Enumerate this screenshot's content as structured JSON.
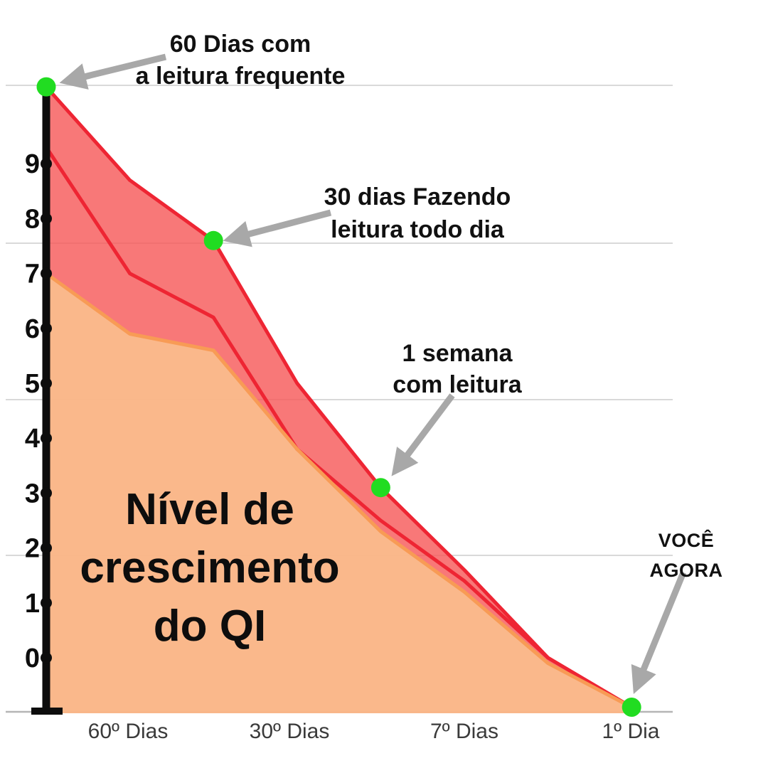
{
  "page": {
    "background": "#ffffff"
  },
  "title": {
    "lines": [
      "Nível de",
      "crescimento",
      "do QI"
    ]
  },
  "chart_data": {
    "type": "area",
    "inside_label": "Nível de crescimento do QI",
    "x_tick_labels": [
      "60º Dias",
      "30º Dias",
      "7º Dias",
      "1º Dia"
    ],
    "y_tick_labels": [
      "9",
      "8",
      "7",
      "6",
      "5",
      "4",
      "3",
      "2",
      "1",
      "0"
    ],
    "y_axis": {
      "ticks_min": 0,
      "ticks_max": 9
    },
    "series": [
      {
        "name": "crescimento-com-leitura-frequente",
        "type": "area",
        "stroke": "#ee2533",
        "fill": "#f65a5a",
        "fill_opacity": 0.82,
        "values": [
          10.4,
          8.7,
          7.6,
          5.0,
          3.1,
          1.6,
          0.0,
          -0.9
        ]
      },
      {
        "name": "crescimento-medio",
        "type": "line",
        "stroke": "#ee2533",
        "values": [
          9.3,
          7.0,
          6.2,
          3.8,
          2.5,
          1.4,
          0.0,
          -0.9
        ]
      },
      {
        "name": "crescimento-sem-leitura",
        "type": "area",
        "stroke": "#f89b55",
        "fill": "#fabf8d",
        "fill_opacity": 0.9,
        "values": [
          7.0,
          5.9,
          5.6,
          3.8,
          2.3,
          1.2,
          -0.1,
          -0.9
        ]
      }
    ],
    "markers": {
      "series_index": 0,
      "point_indices": [
        0,
        2,
        4,
        7
      ],
      "color": "#21dc21"
    },
    "annotations": [
      {
        "lines": [
          "60 Dias com",
          "a leitura frequente"
        ],
        "points_to": "marker-0"
      },
      {
        "lines": [
          "30 dias Fazendo",
          "leitura todo dia"
        ],
        "points_to": "marker-1"
      },
      {
        "lines": [
          "1 semana",
          "com leitura"
        ],
        "points_to": "marker-2"
      },
      {
        "lines": [
          "VOCÊ",
          "AGORA"
        ],
        "points_to": "marker-3"
      }
    ],
    "colors": {
      "arrow": "#a8a8a8",
      "gridline": "#d9d9d9",
      "baseline": "#b5b5b5",
      "axis": "#0d0d0d",
      "x_label": "#3a3a3a"
    }
  }
}
